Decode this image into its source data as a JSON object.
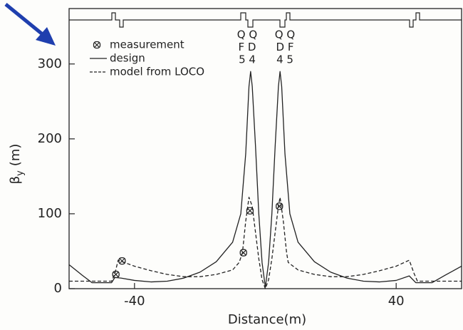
{
  "chart_data": {
    "type": "line",
    "xlabel": "Distance(m)",
    "ylabel": [
      "β",
      "y",
      "(m)"
    ],
    "xlim": [
      -60,
      60
    ],
    "ylim": [
      0,
      374
    ],
    "xticks": [
      -40,
      40
    ],
    "yticks": [
      0,
      100,
      200,
      300
    ],
    "legend": "upper left",
    "annotations": [
      [
        "Q Q",
        "F D",
        "5 4"
      ],
      [
        "Q Q",
        "D F",
        "4 5"
      ]
    ],
    "series": [
      {
        "name": "measurement",
        "color": "#222222",
        "style": "markers",
        "x": [
          -45.7,
          -43.8,
          -6.7,
          -4.7,
          4.3
        ],
        "values": [
          19,
          37,
          48,
          104,
          110
        ]
      },
      {
        "name": "design",
        "color": "#222222",
        "style": "solid",
        "x": [
          -60,
          -56,
          -53,
          -47,
          -46,
          -44,
          -40,
          -35,
          -30,
          -25,
          -20,
          -15,
          -10,
          -7.5,
          -6,
          -5,
          -4.5,
          -4,
          -3,
          -2,
          -1,
          0,
          1,
          2,
          3,
          4,
          4.5,
          5,
          6,
          7.5,
          10,
          15,
          20,
          25,
          30,
          35,
          40,
          44,
          46,
          51,
          55,
          60
        ],
        "values": [
          32,
          18,
          8,
          8,
          15,
          14,
          11,
          9,
          10,
          14,
          22,
          36,
          62,
          100,
          180,
          270,
          290,
          270,
          190,
          100,
          35,
          2,
          35,
          100,
          190,
          270,
          290,
          270,
          180,
          100,
          62,
          36,
          22,
          14,
          10,
          9,
          11,
          17,
          8,
          8,
          18,
          30
        ]
      },
      {
        "name": "model from LOCO",
        "color": "#222222",
        "style": "dashed",
        "x": [
          -60,
          -54,
          -47,
          -46,
          -45,
          -40,
          -35,
          -30,
          -25,
          -20,
          -15,
          -10,
          -8,
          -7,
          -6,
          -5,
          -4,
          -3,
          -2,
          -1,
          0,
          1,
          2,
          3,
          4,
          4.5,
          5.5,
          6.5,
          7,
          10,
          15,
          20,
          25,
          30,
          35,
          40,
          44,
          45.5,
          46.5,
          54,
          60
        ],
        "values": [
          10,
          10,
          10,
          20,
          38,
          30,
          24,
          19,
          16,
          16,
          19,
          25,
          35,
          48,
          90,
          122,
          110,
          75,
          40,
          12,
          0,
          12,
          40,
          75,
          110,
          122,
          90,
          48,
          35,
          25,
          19,
          16,
          16,
          19,
          24,
          30,
          38,
          20,
          10,
          10,
          10
        ]
      }
    ]
  }
}
